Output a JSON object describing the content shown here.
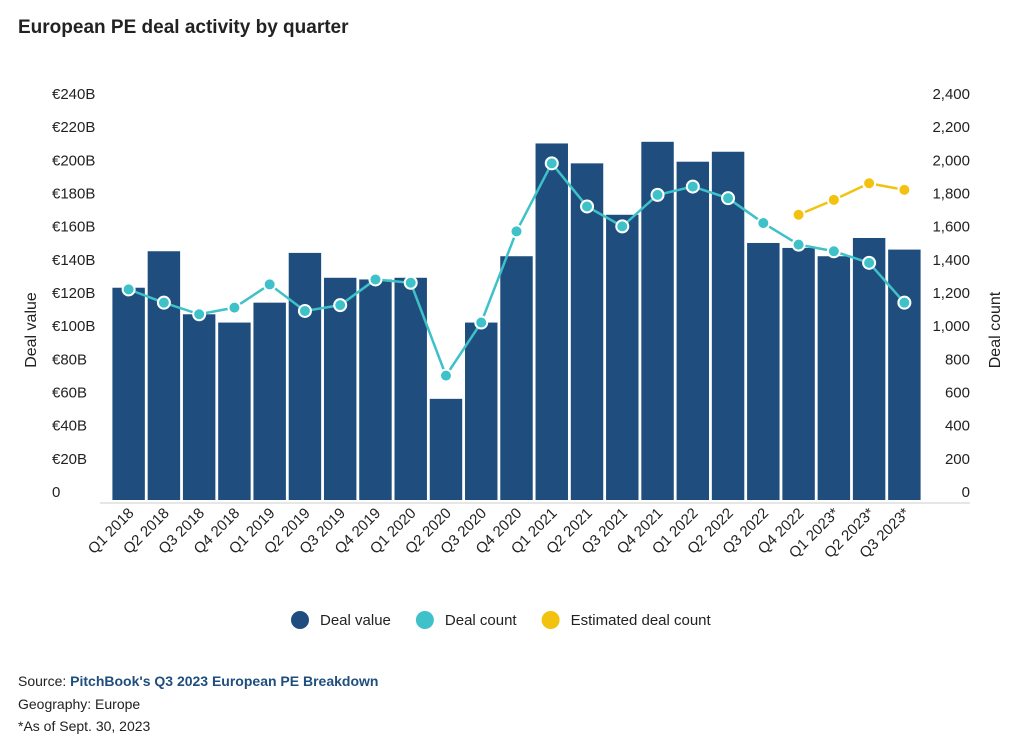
{
  "chart_data": {
    "type": "bar",
    "title": "European PE deal activity by quarter",
    "categories": [
      "Q1 2018",
      "Q2 2018",
      "Q3 2018",
      "Q4 2018",
      "Q1 2019",
      "Q2 2019",
      "Q3 2019",
      "Q4 2019",
      "Q1 2020",
      "Q2 2020",
      "Q3 2020",
      "Q4 2020",
      "Q1 2021",
      "Q2 2021",
      "Q3 2021",
      "Q4 2021",
      "Q1 2022",
      "Q2 2022",
      "Q3 2022",
      "Q4 2022",
      "Q1 2023*",
      "Q2 2023*",
      "Q3 2023*"
    ],
    "series": [
      {
        "name": "Deal value",
        "color": "#1f4e7e",
        "type": "bar",
        "values": [
          128,
          150,
          112,
          107,
          119,
          149,
          134,
          133,
          134,
          61,
          107,
          147,
          215,
          203,
          172,
          216,
          204,
          210,
          155,
          152,
          147,
          158,
          151
        ]
      },
      {
        "name": "Deal count",
        "color": "#3ec1c8",
        "type": "line",
        "axis": "y2",
        "values": [
          1270,
          1190,
          1120,
          1160,
          1300,
          1140,
          1175,
          1330,
          1310,
          750,
          1070,
          1620,
          2030,
          1770,
          1650,
          1840,
          1890,
          1820,
          1670,
          1540,
          1500,
          1430,
          1190
        ]
      },
      {
        "name": "Estimated deal count",
        "color": "#f2c20f",
        "type": "line",
        "axis": "y2",
        "values": [
          null,
          null,
          null,
          null,
          null,
          null,
          null,
          null,
          null,
          null,
          null,
          null,
          null,
          null,
          null,
          null,
          null,
          null,
          null,
          1720,
          1810,
          1910,
          1870
        ]
      }
    ],
    "ylabel": "Deal value",
    "y2label": "Deal count",
    "ylim": [
      0,
      240
    ],
    "yticks": [
      0,
      {
        "value": 20,
        "label": "€20B"
      },
      {
        "value": 40,
        "label": "€40B"
      },
      {
        "value": 60,
        "label": "€60B"
      },
      {
        "value": 80,
        "label": "€80B"
      },
      {
        "value": 100,
        "label": "€100B"
      },
      {
        "value": 120,
        "label": "€120B"
      },
      {
        "value": 140,
        "label": "€140B"
      },
      {
        "value": 160,
        "label": "€160B"
      },
      {
        "value": 180,
        "label": "€180B"
      },
      {
        "value": 200,
        "label": "€200B"
      },
      {
        "value": 220,
        "label": "€220B"
      },
      {
        "value": 240,
        "label": "€240B"
      }
    ],
    "y2lim": [
      0,
      2400
    ],
    "y2ticks": [
      0,
      200,
      400,
      600,
      800,
      {
        "value": 1000,
        "label": "1,000"
      },
      {
        "value": 1200,
        "label": "1,200"
      },
      {
        "value": 1400,
        "label": "1,400"
      },
      {
        "value": 1600,
        "label": "1,600"
      },
      {
        "value": 1800,
        "label": "1,800"
      },
      {
        "value": 2000,
        "label": "2,000"
      },
      {
        "value": 2200,
        "label": "2,200"
      },
      {
        "value": 2400,
        "label": "2,400"
      }
    ],
    "grid": false,
    "legend": "bottom"
  },
  "footer": {
    "source_label": "Source:",
    "source_link": "PitchBook's Q3 2023 European PE Breakdown",
    "geography": "Geography: Europe",
    "note": "*As of Sept. 30, 2023"
  }
}
